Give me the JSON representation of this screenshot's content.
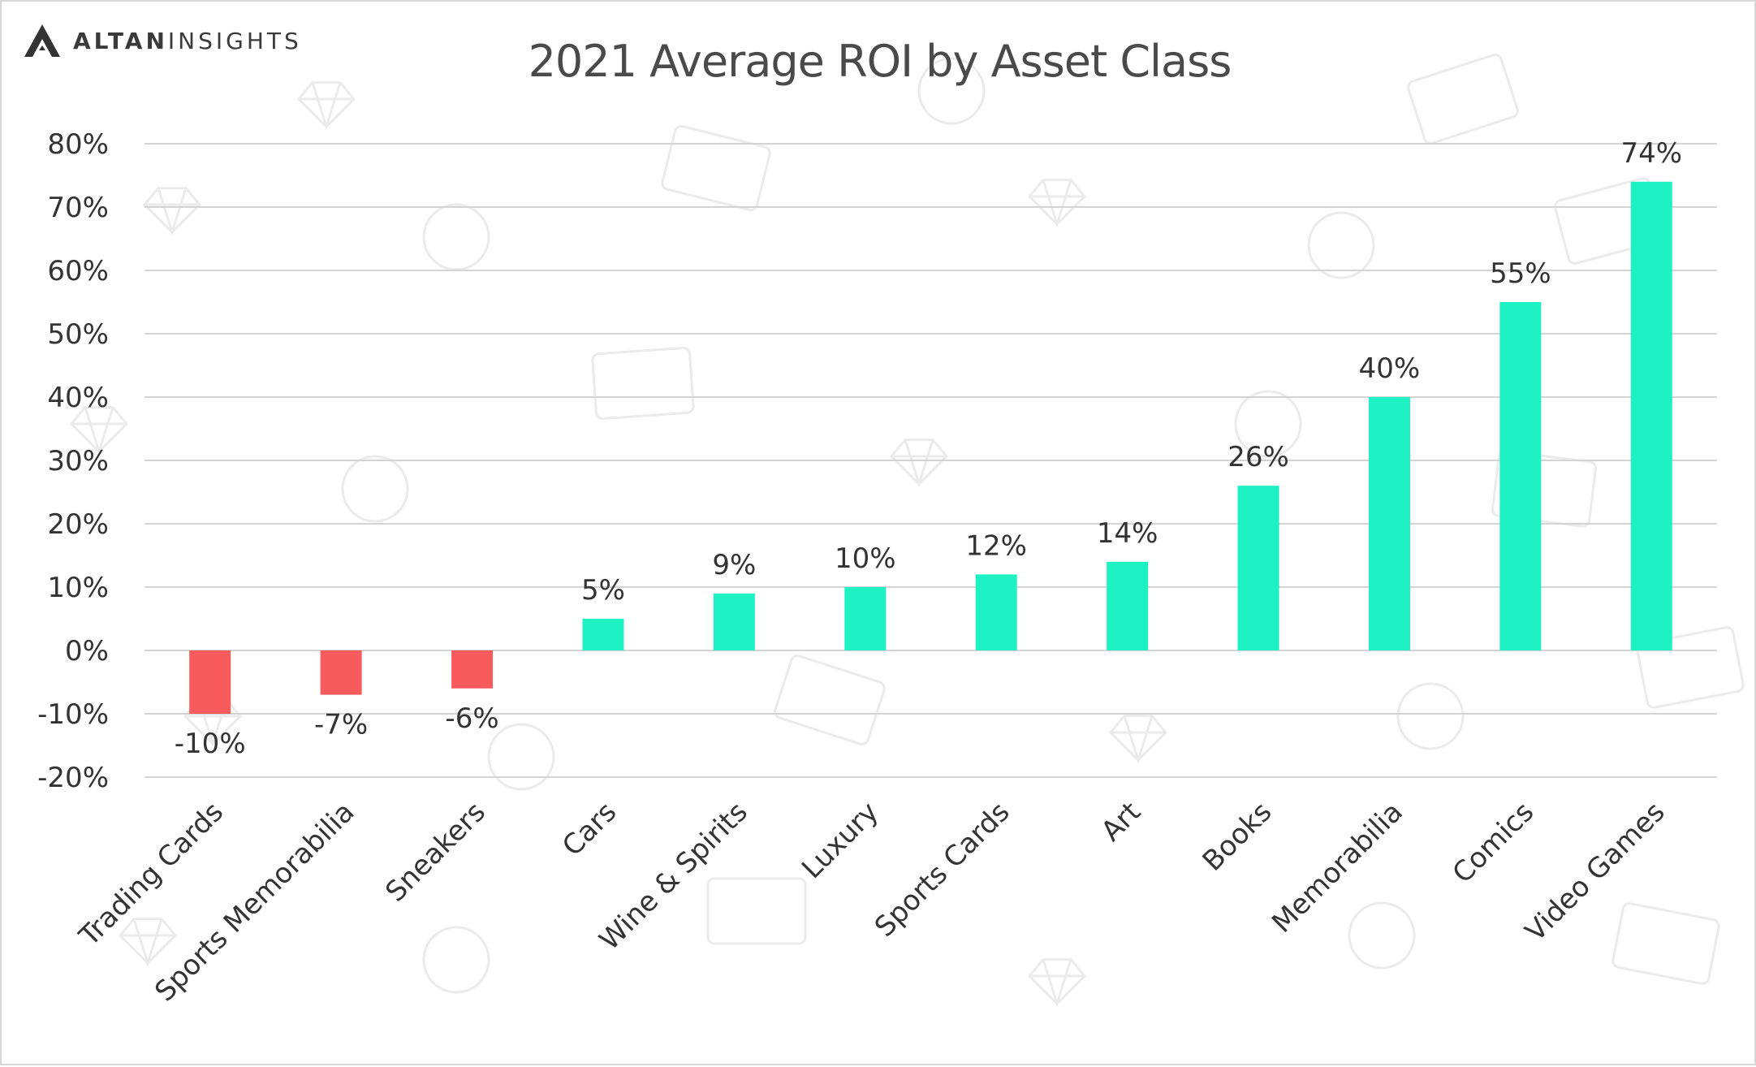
{
  "brand": {
    "logo_bold": "ALTAN",
    "logo_light": "INSIGHTS",
    "logo_icon": "triangle-a-logo-icon"
  },
  "colors": {
    "negative": "#f75b5e",
    "positive": "#1ef2c2",
    "grid": "#d4d4d4",
    "text": "#333333",
    "title": "#4a4a4a",
    "background_pattern": "#ebebeb"
  },
  "chart_data": {
    "type": "bar",
    "title": "2021 Average ROI by Asset Class",
    "xlabel": "",
    "ylabel": "",
    "ylim": [
      -20,
      80
    ],
    "yticks": [
      80,
      70,
      60,
      50,
      40,
      30,
      20,
      10,
      0,
      -10,
      -20
    ],
    "ytick_labels": [
      "80%",
      "70%",
      "60%",
      "50%",
      "40%",
      "30%",
      "20%",
      "10%",
      "0%",
      "-10%",
      "-20%"
    ],
    "grid": true,
    "legend": "none",
    "categories": [
      "Trading Cards",
      "Sports Memorabilia",
      "Sneakers",
      "Cars",
      "Wine & Spirits",
      "Luxury",
      "Sports Cards",
      "Art",
      "Books",
      "Memorabilia",
      "Comics",
      "Video Games"
    ],
    "values": [
      -10,
      -7,
      -6,
      5,
      9,
      10,
      12,
      14,
      26,
      40,
      55,
      74
    ],
    "data_labels": [
      "-10%",
      "-7%",
      "-6%",
      "5%",
      "9%",
      "10%",
      "12%",
      "14%",
      "26%",
      "40%",
      "55%",
      "74%"
    ]
  }
}
